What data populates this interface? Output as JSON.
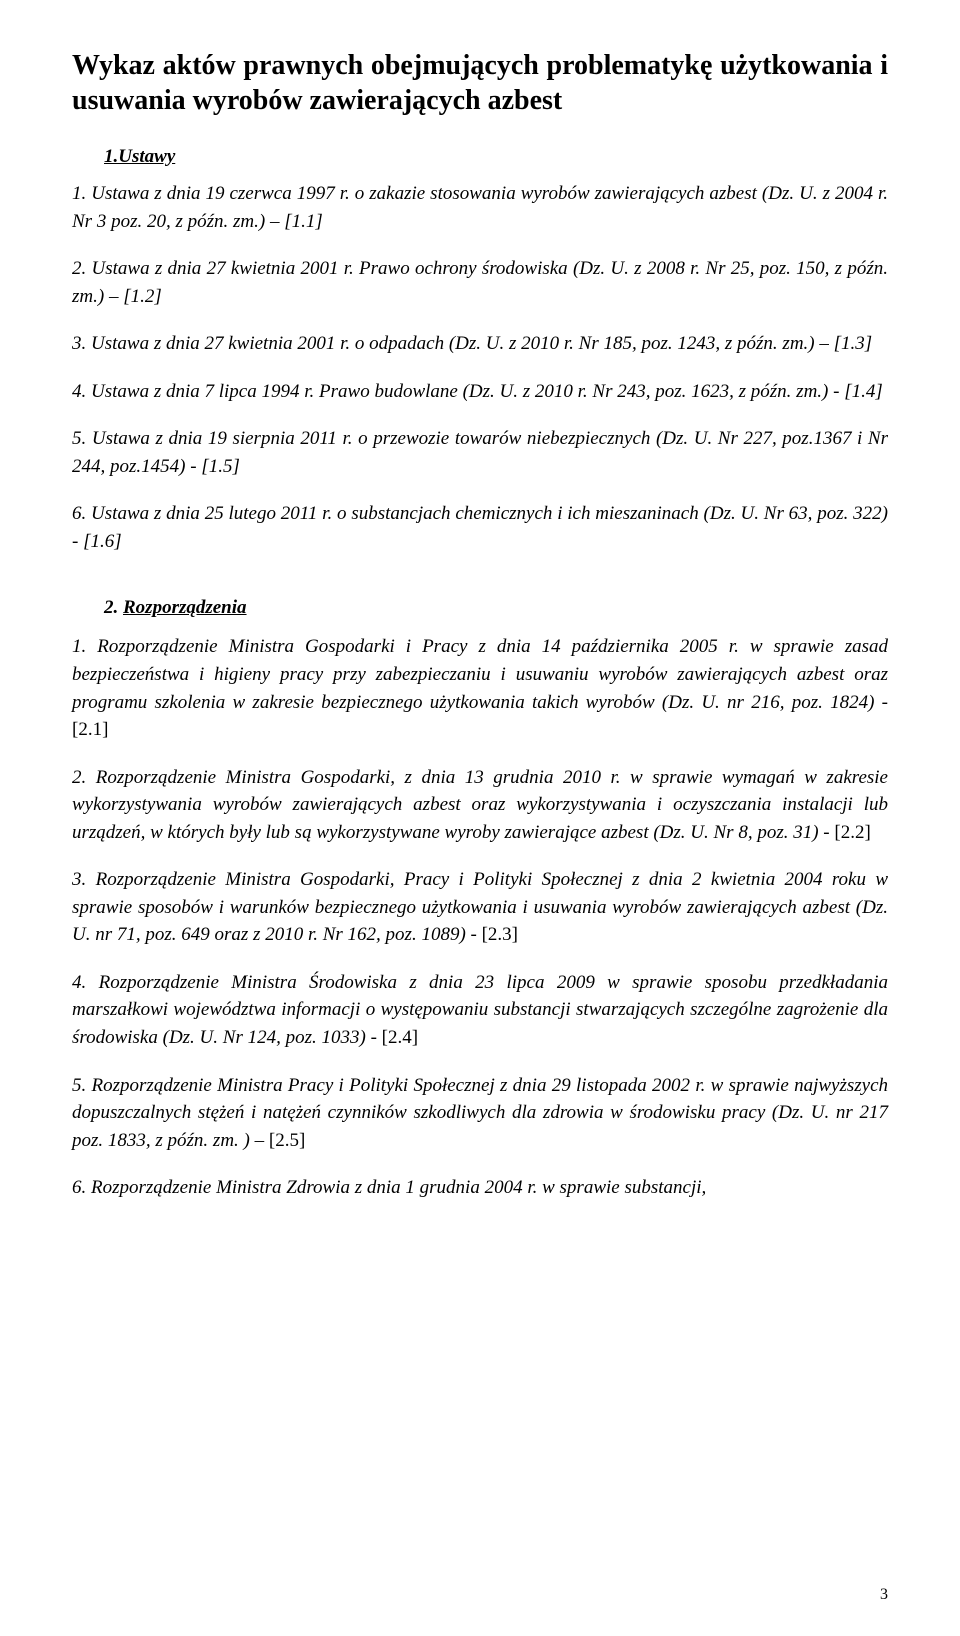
{
  "title": "Wykaz aktów prawnych obejmujących problematykę użytkowania i usuwania wyrobów zawierających azbest",
  "sections": {
    "ustawy": {
      "heading": "1.Ustawy",
      "items": [
        "1. Ustawa z dnia 19 czerwca 1997 r. o zakazie stosowania wyrobów zawierających azbest (Dz. U. z 2004 r. Nr 3 poz. 20, z późn. zm.) – [1.1]",
        "2. Ustawa z dnia 27 kwietnia 2001 r. Prawo ochrony środowiska (Dz. U. z 2008 r. Nr 25, poz. 150,  z późn. zm.) – [1.2]",
        "3. Ustawa z dnia 27 kwietnia 2001 r. o odpadach (Dz. U. z 2010 r. Nr 185, poz. 1243, z późn. zm.) – [1.3]",
        "4. Ustawa z dnia 7 lipca 1994 r. Prawo budowlane (Dz. U. z 2010 r. Nr 243, poz. 1623, z późn. zm.) - [1.4]",
        "5. Ustawa z dnia 19 sierpnia 2011 r. o przewozie towarów niebezpiecznych (Dz. U. Nr 227, poz.1367 i Nr 244, poz.1454) - [1.5]",
        "6. Ustawa z dnia 25 lutego 2011 r. o substancjach chemicznych i ich mieszaninach (Dz. U. Nr 63, poz. 322) - [1.6]"
      ]
    },
    "rozporzadzenia": {
      "heading_prefix": "2. ",
      "heading_text": "Rozporządzenia",
      "items": [
        {
          "italic": "1. Rozporządzenie Ministra Gospodarki i Pracy z dnia 14 października 2005 r. w sprawie zasad bezpieczeństwa i higieny pracy przy zabezpieczaniu i usuwaniu wyrobów zawierających azbest oraz programu szkolenia w zakresie bezpiecznego użytkowania takich wyrobów (Dz. U. nr 216, poz. 1824) - ",
          "tail": "[2.1]"
        },
        {
          "italic": "2. Rozporządzenie Ministra Gospodarki, z dnia 13 grudnia 2010 r. w sprawie wymagań w zakresie wykorzystywania wyrobów zawierających azbest oraz wykorzystywania i oczyszczania instalacji lub urządzeń, w których były lub są wykorzystywane wyroby zawierające azbest (Dz. U. Nr 8, poz. 31) - ",
          "tail": "[2.2]"
        },
        {
          "italic": "3. Rozporządzenie Ministra Gospodarki, Pracy i Polityki Społecznej z dnia 2 kwietnia 2004 roku w sprawie sposobów i warunków bezpiecznego użytkowania i usuwania wyrobów zawierających azbest (Dz. U. nr 71, poz. 649 oraz z 2010 r. Nr 162, poz. 1089) - ",
          "tail": "[2.3]"
        },
        {
          "italic": "4. Rozporządzenie Ministra Środowiska z dnia 23 lipca 2009 w sprawie sposobu przedkładania marszałkowi województwa informacji o występowaniu substancji stwarzających szczególne zagrożenie dla środowiska (Dz. U. Nr 124, poz. 1033) - ",
          "tail": "[2.4]"
        },
        {
          "italic": "5. Rozporządzenie Ministra Pracy i Polityki Społecznej z dnia 29 listopada 2002 r. w sprawie najwyższych dopuszczalnych stężeń i natężeń czynników szkodliwych dla zdrowia w środowisku pracy (Dz. U. nr 217 poz. 1833, z późn. zm. ) – ",
          "tail": "[2.5]"
        },
        {
          "italic": "6. Rozporządzenie Ministra Zdrowia z dnia 1 grudnia 2004 r. w sprawie substancji,",
          "tail": ""
        }
      ]
    }
  },
  "page_number": "3",
  "colors": {
    "bg": "#ffffff",
    "text": "#000000"
  },
  "typography": {
    "title_fontsize": 28,
    "body_fontsize": 19,
    "font_family": "Times New Roman"
  }
}
